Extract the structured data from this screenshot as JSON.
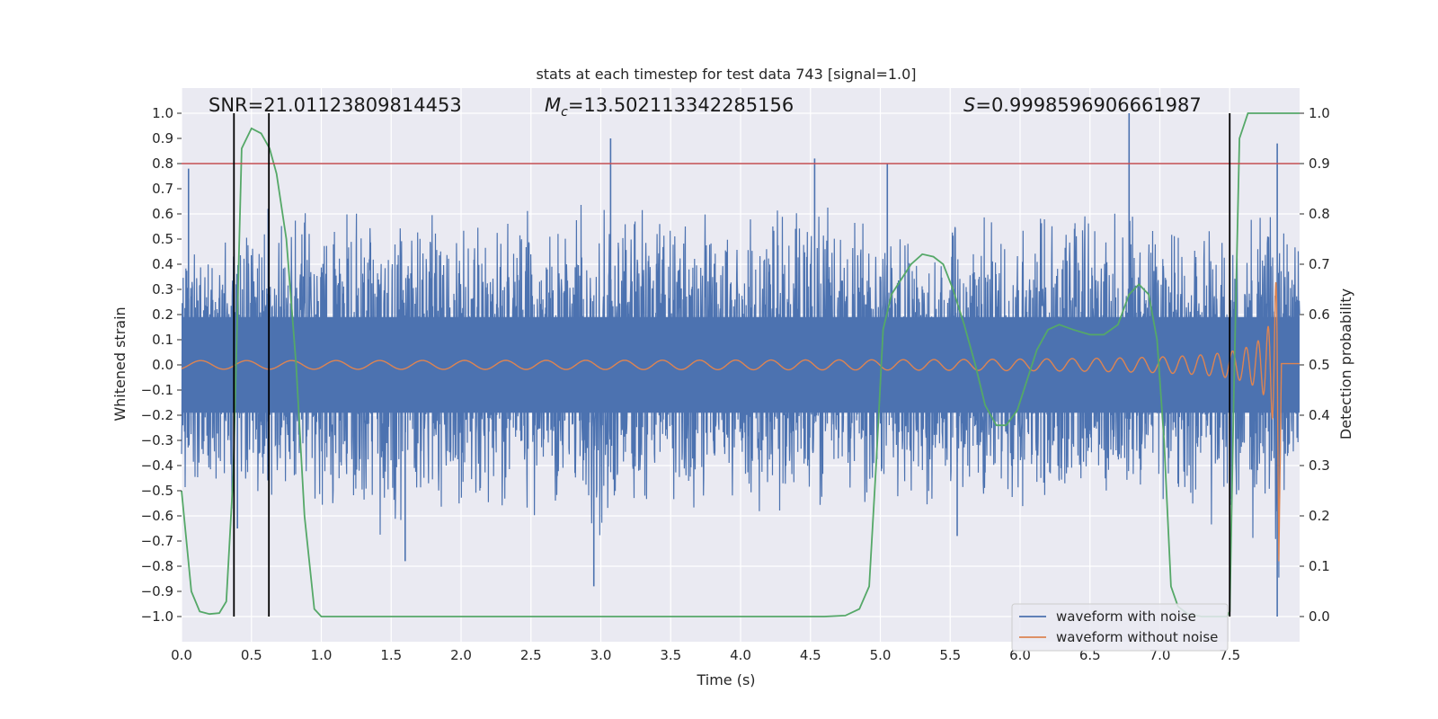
{
  "chart_data": {
    "type": "line",
    "title": "stats at each timestep for test data 743 [signal=1.0]",
    "xlabel": "Time (s)",
    "ylabel": "Whitened strain",
    "y2label": "Detection probability",
    "xlim": [
      0.0,
      8.0
    ],
    "ylim": [
      -1.1,
      1.1
    ],
    "y2lim": [
      -0.05,
      1.05
    ],
    "grid": true,
    "legend_position": "lower-right",
    "x_ticks": [
      "0.0",
      "0.5",
      "1.0",
      "1.5",
      "2.0",
      "2.5",
      "3.0",
      "3.5",
      "4.0",
      "4.5",
      "5.0",
      "5.5",
      "6.0",
      "6.5",
      "7.0",
      "7.5"
    ],
    "y_ticks": [
      "1.0",
      "0.9",
      "0.8",
      "0.7",
      "0.6",
      "0.5",
      "0.4",
      "0.3",
      "0.2",
      "0.1",
      "0.0",
      "−0.1",
      "−0.2",
      "−0.3",
      "−0.4",
      "−0.5",
      "−0.6",
      "−0.7",
      "−0.8",
      "−0.9",
      "−1.0"
    ],
    "y2_ticks": [
      "1.0",
      "0.9",
      "0.8",
      "0.7",
      "0.6",
      "0.5",
      "0.4",
      "0.3",
      "0.2",
      "0.1",
      "0.0"
    ],
    "annotations": {
      "snr": "SNR=21.01123809814453",
      "mc_symbol": "M",
      "mc_sub": "c",
      "mc_value": "=13.502113342285156",
      "s_symbol": "S",
      "s_value": "=0.9998596906661987"
    },
    "threshold_line": {
      "y2": 0.9,
      "color": "#c44e52"
    },
    "vertical_markers": [
      0.375,
      0.625,
      7.5
    ],
    "series": [
      {
        "name": "waveform with noise",
        "color": "#4c72b0",
        "axis": "left",
        "envelope": {
          "t": [
            0.0,
            0.5,
            1.0,
            1.5,
            2.0,
            2.5,
            3.0,
            3.5,
            4.0,
            4.5,
            5.0,
            5.5,
            6.0,
            6.5,
            7.0,
            7.5,
            7.7,
            7.85,
            7.9,
            8.0
          ],
          "upper": [
            0.55,
            0.6,
            0.65,
            0.65,
            0.62,
            0.65,
            0.7,
            0.62,
            0.65,
            0.7,
            0.62,
            0.6,
            0.65,
            0.7,
            0.62,
            0.55,
            0.75,
            0.88,
            0.55,
            0.55
          ],
          "lower": [
            -0.55,
            -0.6,
            -0.62,
            -0.7,
            -0.62,
            -0.62,
            -0.75,
            -0.62,
            -0.62,
            -0.6,
            -0.58,
            -0.62,
            -0.65,
            -0.6,
            -0.62,
            -0.7,
            -0.8,
            -1.0,
            -0.6,
            -0.45
          ]
        },
        "spikes": [
          {
            "t": 0.05,
            "v": 0.78
          },
          {
            "t": 0.62,
            "v": 0.62
          },
          {
            "t": 3.07,
            "v": 0.9
          },
          {
            "t": 4.53,
            "v": 0.82
          },
          {
            "t": 5.05,
            "v": 0.8
          },
          {
            "t": 6.78,
            "v": 1.0
          },
          {
            "t": 7.84,
            "v": 0.88
          },
          {
            "t": 0.4,
            "v": -0.65
          },
          {
            "t": 1.6,
            "v": -0.78
          },
          {
            "t": 2.95,
            "v": -0.88
          },
          {
            "t": 5.55,
            "v": -0.68
          },
          {
            "t": 7.84,
            "v": -1.0
          }
        ]
      },
      {
        "name": "waveform without noise",
        "color": "#dd8452",
        "axis": "left",
        "chirp": {
          "t_merger": 7.85,
          "base_amplitude": 0.015,
          "peak_amplitude": 0.62,
          "base_frequency_hz": 11,
          "ringdown_value": -0.83
        }
      },
      {
        "name": "detection probability",
        "color": "#55a868",
        "axis": "right",
        "points": [
          [
            0.0,
            0.25
          ],
          [
            0.07,
            0.05
          ],
          [
            0.13,
            0.01
          ],
          [
            0.2,
            0.005
          ],
          [
            0.27,
            0.007
          ],
          [
            0.32,
            0.03
          ],
          [
            0.37,
            0.28
          ],
          [
            0.43,
            0.93
          ],
          [
            0.5,
            0.97
          ],
          [
            0.57,
            0.96
          ],
          [
            0.63,
            0.93
          ],
          [
            0.68,
            0.88
          ],
          [
            0.75,
            0.75
          ],
          [
            0.82,
            0.5
          ],
          [
            0.88,
            0.2
          ],
          [
            0.95,
            0.015
          ],
          [
            1.0,
            0.0
          ],
          [
            1.5,
            0.0
          ],
          [
            2.0,
            0.0
          ],
          [
            3.0,
            0.0
          ],
          [
            4.0,
            0.0
          ],
          [
            4.6,
            0.0
          ],
          [
            4.75,
            0.002
          ],
          [
            4.85,
            0.015
          ],
          [
            4.92,
            0.06
          ],
          [
            4.97,
            0.3
          ],
          [
            5.02,
            0.57
          ],
          [
            5.08,
            0.64
          ],
          [
            5.15,
            0.67
          ],
          [
            5.22,
            0.7
          ],
          [
            5.3,
            0.72
          ],
          [
            5.38,
            0.715
          ],
          [
            5.45,
            0.7
          ],
          [
            5.52,
            0.65
          ],
          [
            5.6,
            0.58
          ],
          [
            5.68,
            0.5
          ],
          [
            5.75,
            0.42
          ],
          [
            5.83,
            0.38
          ],
          [
            5.9,
            0.38
          ],
          [
            5.98,
            0.41
          ],
          [
            6.05,
            0.47
          ],
          [
            6.12,
            0.53
          ],
          [
            6.2,
            0.57
          ],
          [
            6.28,
            0.58
          ],
          [
            6.38,
            0.57
          ],
          [
            6.5,
            0.56
          ],
          [
            6.6,
            0.56
          ],
          [
            6.7,
            0.58
          ],
          [
            6.78,
            0.64
          ],
          [
            6.85,
            0.66
          ],
          [
            6.92,
            0.64
          ],
          [
            6.98,
            0.55
          ],
          [
            7.03,
            0.35
          ],
          [
            7.08,
            0.06
          ],
          [
            7.13,
            0.02
          ],
          [
            7.2,
            0.005
          ],
          [
            7.3,
            0.0
          ],
          [
            7.48,
            0.0
          ],
          [
            7.5,
            0.01
          ],
          [
            7.53,
            0.45
          ],
          [
            7.57,
            0.95
          ],
          [
            7.63,
            1.0
          ],
          [
            8.0,
            1.0
          ]
        ]
      }
    ],
    "legend": [
      "waveform with noise",
      "waveform without noise"
    ]
  }
}
